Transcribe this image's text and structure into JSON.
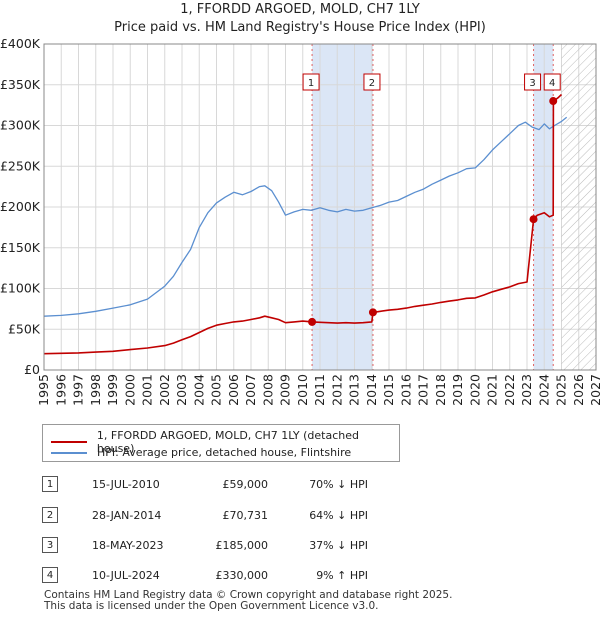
{
  "chart_data": {
    "type": "line",
    "title": "1, FFORDD ARGOED, MOLD, CH7 1LY",
    "subtitle": "Price paid vs. HM Land Registry's House Price Index (HPI)",
    "x_range": [
      1995,
      2027
    ],
    "y_range": [
      0,
      400000
    ],
    "x_ticks": [
      "1995",
      "1996",
      "1997",
      "1998",
      "1999",
      "2000",
      "2001",
      "2002",
      "2003",
      "2004",
      "2005",
      "2006",
      "2007",
      "2008",
      "2009",
      "2010",
      "2011",
      "2012",
      "2013",
      "2014",
      "2015",
      "2016",
      "2017",
      "2018",
      "2019",
      "2020",
      "2021",
      "2022",
      "2023",
      "2024",
      "2025",
      "2026",
      "2027"
    ],
    "y_ticks": [
      {
        "value": 0,
        "label": "£0"
      },
      {
        "value": 50000,
        "label": "£50K"
      },
      {
        "value": 100000,
        "label": "£100K"
      },
      {
        "value": 150000,
        "label": "£150K"
      },
      {
        "value": 200000,
        "label": "£200K"
      },
      {
        "value": 250000,
        "label": "£250K"
      },
      {
        "value": 300000,
        "label": "£300K"
      },
      {
        "value": 350000,
        "label": "£350K"
      },
      {
        "value": 400000,
        "label": "£400K"
      }
    ],
    "grid": true,
    "shaded_periods": [
      [
        2010.54,
        2014.07
      ],
      [
        2023.38,
        2024.52
      ]
    ],
    "forecast_hatch_from": 2025.0,
    "series": [
      {
        "name": "HPI: Average price, detached house, Flintshire",
        "color": "#5b8fd0",
        "points": [
          [
            1995.0,
            66000
          ],
          [
            1996.0,
            67000
          ],
          [
            1997.0,
            69000
          ],
          [
            1998.0,
            72000
          ],
          [
            1999.0,
            76000
          ],
          [
            2000.0,
            80000
          ],
          [
            2001.0,
            87000
          ],
          [
            2002.0,
            103000
          ],
          [
            2002.5,
            115000
          ],
          [
            2003.0,
            132000
          ],
          [
            2003.5,
            148000
          ],
          [
            2004.0,
            175000
          ],
          [
            2004.5,
            193000
          ],
          [
            2005.0,
            205000
          ],
          [
            2005.5,
            212000
          ],
          [
            2006.0,
            218000
          ],
          [
            2006.5,
            215000
          ],
          [
            2007.0,
            219000
          ],
          [
            2007.5,
            225000
          ],
          [
            2007.8,
            226000
          ],
          [
            2008.2,
            220000
          ],
          [
            2008.6,
            206000
          ],
          [
            2009.0,
            190000
          ],
          [
            2009.5,
            194000
          ],
          [
            2010.0,
            197000
          ],
          [
            2010.5,
            196000
          ],
          [
            2011.0,
            199000
          ],
          [
            2011.5,
            196000
          ],
          [
            2012.0,
            194000
          ],
          [
            2012.5,
            197000
          ],
          [
            2013.0,
            195000
          ],
          [
            2013.5,
            196000
          ],
          [
            2014.0,
            199000
          ],
          [
            2014.5,
            202000
          ],
          [
            2015.0,
            206000
          ],
          [
            2015.5,
            208000
          ],
          [
            2016.0,
            213000
          ],
          [
            2016.5,
            218000
          ],
          [
            2017.0,
            222000
          ],
          [
            2017.5,
            228000
          ],
          [
            2018.0,
            233000
          ],
          [
            2018.5,
            238000
          ],
          [
            2019.0,
            242000
          ],
          [
            2019.5,
            247000
          ],
          [
            2020.0,
            248000
          ],
          [
            2020.5,
            258000
          ],
          [
            2021.0,
            270000
          ],
          [
            2021.5,
            280000
          ],
          [
            2022.0,
            290000
          ],
          [
            2022.5,
            300000
          ],
          [
            2022.9,
            304000
          ],
          [
            2023.3,
            298000
          ],
          [
            2023.7,
            295000
          ],
          [
            2024.0,
            302000
          ],
          [
            2024.3,
            296000
          ],
          [
            2024.6,
            300000
          ],
          [
            2025.0,
            305000
          ],
          [
            2025.3,
            310000
          ]
        ]
      },
      {
        "name": "1, FFORDD ARGOED, MOLD, CH7 1LY (detached house)",
        "color": "#c00000",
        "points": [
          [
            1995.0,
            20000
          ],
          [
            1996.0,
            20500
          ],
          [
            1997.0,
            21000
          ],
          [
            1998.0,
            22000
          ],
          [
            1999.0,
            23000
          ],
          [
            2000.0,
            25000
          ],
          [
            2001.0,
            27000
          ],
          [
            2002.0,
            30000
          ],
          [
            2002.5,
            33000
          ],
          [
            2003.0,
            37000
          ],
          [
            2003.5,
            41000
          ],
          [
            2004.0,
            46000
          ],
          [
            2004.5,
            51000
          ],
          [
            2005.0,
            55000
          ],
          [
            2005.5,
            57000
          ],
          [
            2006.0,
            59000
          ],
          [
            2006.5,
            60000
          ],
          [
            2007.0,
            62000
          ],
          [
            2007.5,
            64000
          ],
          [
            2007.8,
            66000
          ],
          [
            2008.2,
            64000
          ],
          [
            2008.6,
            62000
          ],
          [
            2009.0,
            58000
          ],
          [
            2009.5,
            59000
          ],
          [
            2010.0,
            60000
          ],
          [
            2010.54,
            59000
          ],
          [
            2011.0,
            58500
          ],
          [
            2011.5,
            58000
          ],
          [
            2012.0,
            57500
          ],
          [
            2012.5,
            58000
          ],
          [
            2013.0,
            57500
          ],
          [
            2013.5,
            58000
          ],
          [
            2014.0,
            59000
          ],
          [
            2014.07,
            70731
          ],
          [
            2014.5,
            72000
          ],
          [
            2015.0,
            73500
          ],
          [
            2015.5,
            74500
          ],
          [
            2016.0,
            76000
          ],
          [
            2016.5,
            78000
          ],
          [
            2017.0,
            79500
          ],
          [
            2017.5,
            81000
          ],
          [
            2018.0,
            83000
          ],
          [
            2018.5,
            84500
          ],
          [
            2019.0,
            86000
          ],
          [
            2019.5,
            88000
          ],
          [
            2020.0,
            88500
          ],
          [
            2020.5,
            92000
          ],
          [
            2021.0,
            96000
          ],
          [
            2021.5,
            99000
          ],
          [
            2022.0,
            102000
          ],
          [
            2022.5,
            106000
          ],
          [
            2023.0,
            108000
          ],
          [
            2023.38,
            185000
          ],
          [
            2023.6,
            190000
          ],
          [
            2024.0,
            193000
          ],
          [
            2024.3,
            188000
          ],
          [
            2024.52,
            190000
          ],
          [
            2024.53,
            330000
          ],
          [
            2024.8,
            334000
          ],
          [
            2025.0,
            338000
          ]
        ]
      }
    ],
    "markers": [
      {
        "label": "1",
        "x": 2010.54,
        "y": 59000
      },
      {
        "label": "2",
        "x": 2014.07,
        "y": 70731
      },
      {
        "label": "3",
        "x": 2023.38,
        "y": 185000
      },
      {
        "label": "4",
        "x": 2024.52,
        "y": 330000
      }
    ]
  },
  "legend": {
    "property_label": "1, FFORDD ARGOED, MOLD, CH7 1LY (detached house)",
    "hpi_label": "HPI: Average price, detached house, Flintshire",
    "property_color": "#c00000",
    "hpi_color": "#5b8fd0"
  },
  "transactions": [
    {
      "id": "1",
      "date": "15-JUL-2010",
      "price": "£59,000",
      "hpi": "70% ↓ HPI"
    },
    {
      "id": "2",
      "date": "28-JAN-2014",
      "price": "£70,731",
      "hpi": "64% ↓ HPI"
    },
    {
      "id": "3",
      "date": "18-MAY-2023",
      "price": "£185,000",
      "hpi": "37% ↓ HPI"
    },
    {
      "id": "4",
      "date": "10-JUL-2024",
      "price": "£330,000",
      "hpi": "9% ↑ HPI"
    }
  ],
  "footer": {
    "line1": "Contains HM Land Registry data © Crown copyright and database right 2025.",
    "line2": "This data is licensed under the Open Government Licence v3.0."
  }
}
